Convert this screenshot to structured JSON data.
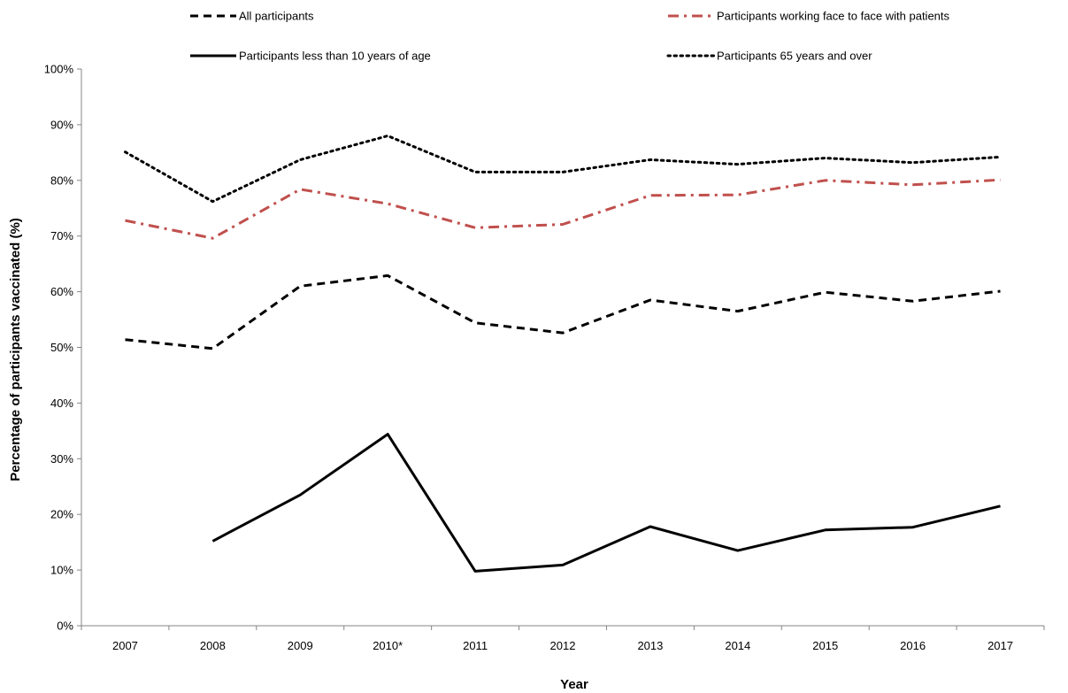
{
  "chart_data": {
    "type": "line",
    "title": "",
    "xlabel": "Year",
    "ylabel": "Percentage of participants vaccinated (%)",
    "categories": [
      "2007",
      "2008",
      "2009",
      "2010*",
      "2011",
      "2012",
      "2013",
      "2014",
      "2015",
      "2016",
      "2017"
    ],
    "ylim": [
      0,
      100
    ],
    "yticks": [
      "0%",
      "10%",
      "20%",
      "30%",
      "40%",
      "50%",
      "60%",
      "70%",
      "80%",
      "90%",
      "100%"
    ],
    "grid": false,
    "legend_position": "top",
    "series": [
      {
        "name": "All participants",
        "style": "dashed",
        "color": "#000000",
        "values": [
          51.4,
          49.8,
          61.0,
          62.9,
          54.4,
          52.6,
          58.5,
          56.5,
          59.9,
          58.3,
          60.1
        ]
      },
      {
        "name": "Participants working face to face with patients",
        "style": "dash-dot",
        "color": "#c0504d",
        "values": [
          72.8,
          69.6,
          78.4,
          75.8,
          71.5,
          72.1,
          77.3,
          77.4,
          80.0,
          79.2,
          80.1
        ]
      },
      {
        "name": "Participants less than 10 years of age",
        "style": "solid",
        "color": "#000000",
        "values": [
          null,
          15.2,
          23.5,
          34.4,
          9.8,
          10.9,
          17.8,
          13.5,
          17.2,
          17.7,
          21.5
        ]
      },
      {
        "name": "Participants 65 years and over",
        "style": "dotted",
        "color": "#000000",
        "values": [
          85.1,
          76.2,
          83.7,
          88.0,
          81.5,
          81.5,
          83.7,
          82.9,
          84.0,
          83.2,
          84.2
        ]
      }
    ]
  }
}
